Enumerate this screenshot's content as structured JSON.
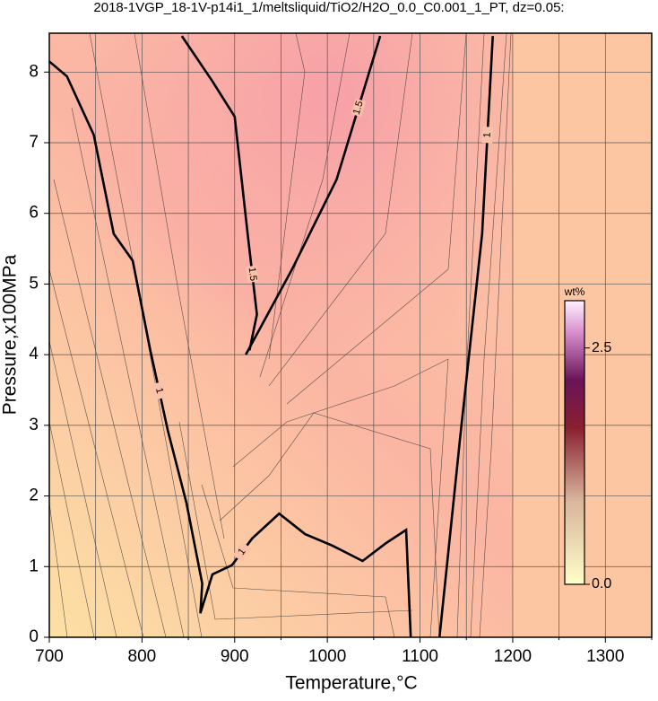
{
  "chart_data": {
    "type": "contour",
    "title": "2018-1VGP_18-1V-p14i1_1/meltsliquid/TiO2/H2O_0.0_C0.001_1_PT, dz=0.05:",
    "xlabel": "Temperature,°C",
    "ylabel": "Pressure,x100MPa",
    "xlim": [
      700,
      1350
    ],
    "ylim": [
      0,
      8.55
    ],
    "xticks": [
      700,
      800,
      900,
      1000,
      1100,
      1200,
      1300
    ],
    "xminorticks": [
      750,
      850,
      950,
      1050,
      1150,
      1250,
      1350
    ],
    "yticks": [
      0,
      1,
      2,
      3,
      4,
      5,
      6,
      7,
      8
    ],
    "grid": true,
    "contours": [
      {
        "level": 1,
        "x": [
          700,
          719,
          748,
          769.5,
          790,
          809,
          828,
          848,
          865,
          863,
          876,
          897,
          919,
          948,
          976,
          1005,
          1038,
          1063,
          1085,
          1090
        ],
        "y": [
          8.15,
          7.94,
          7.11,
          5.71,
          5.33,
          4.06,
          2.92,
          1.9,
          0.76,
          0.34,
          0.89,
          1.02,
          1.4,
          1.75,
          1.46,
          1.3,
          1.08,
          1.33,
          1.52,
          0
        ]
      },
      {
        "level": 1,
        "x": [
          1121,
          1143,
          1167,
          1178.5
        ],
        "y": [
          0,
          2.79,
          5.71,
          8.51
        ]
      },
      {
        "level": 1.5,
        "x": [
          843,
          876,
          900,
          914,
          924,
          916
        ],
        "y": [
          8.51,
          7.87,
          7.37,
          5.71,
          4.57,
          4.06
        ]
      },
      {
        "level": 1.5,
        "x": [
          912,
          962,
          1010,
          1057
        ],
        "y": [
          4.0,
          5.21,
          6.48,
          8.51
        ]
      }
    ],
    "colorbar": {
      "label": "wt%",
      "lim": [
        0,
        3
      ],
      "ticks": [
        {
          "value": 0,
          "label": "0.0"
        },
        {
          "value": 2.5,
          "label": "2.5"
        }
      ]
    }
  }
}
